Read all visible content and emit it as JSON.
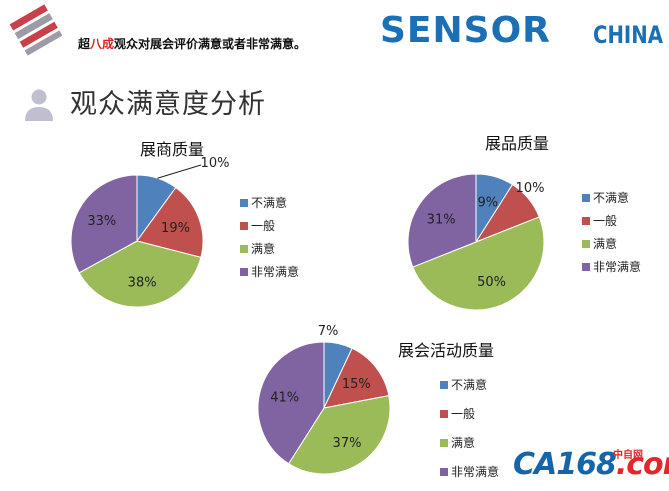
{
  "header": {
    "headline_pre": "超",
    "headline_highlight": "八成",
    "headline_post": "观众对展会评价满意或者非常满意。",
    "page_title": "观众满意度分析",
    "logo_sensor": "SENSOR",
    "logo_china": "CHINA"
  },
  "footer": {
    "logo_ca": "CA168",
    "logo_ca_accent": ".com",
    "logo_ca_sub": "中自网"
  },
  "colors": {
    "blue": "#4f81bd",
    "red": "#c0504d",
    "green": "#9bbb59",
    "purple": "#8064a2",
    "label": "#222222"
  },
  "chart_data": [
    {
      "type": "pie",
      "title": "展商质量",
      "categories": [
        "不满意",
        "一般",
        "满意",
        "非常满意"
      ],
      "values": [
        10,
        19,
        38,
        33
      ],
      "labels": [
        "10%",
        "19%",
        "38%",
        "33%"
      ],
      "legend": "right"
    },
    {
      "type": "pie",
      "title": "展品质量",
      "categories": [
        "不满意",
        "一般",
        "满意",
        "非常满意"
      ],
      "values": [
        9,
        10,
        50,
        31
      ],
      "labels": [
        "9%",
        "10%",
        "50%",
        "31%"
      ],
      "legend": "right"
    },
    {
      "type": "pie",
      "title": "展会活动质量",
      "categories": [
        "不满意",
        "一般",
        "满意",
        "非常满意"
      ],
      "values": [
        7,
        15,
        37,
        41
      ],
      "labels": [
        "7%",
        "15%",
        "37%",
        "41%"
      ],
      "legend": "right"
    }
  ]
}
